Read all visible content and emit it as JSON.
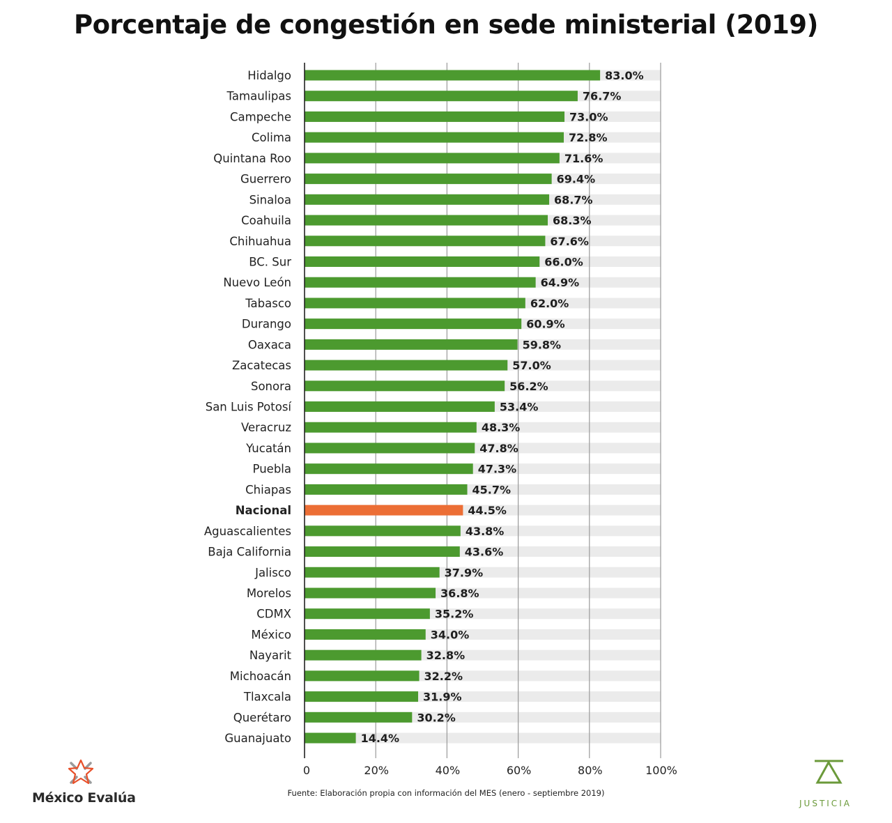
{
  "chart_data": {
    "type": "bar",
    "orientation": "horizontal",
    "title": "Porcentaje de congestión en sede ministerial (2019)",
    "xlabel": "",
    "ylabel": "",
    "xlim": [
      0,
      100
    ],
    "ticks": [
      0,
      20,
      40,
      60,
      80,
      100
    ],
    "tick_labels": [
      "0",
      "20%",
      "40%",
      "60%",
      "80%",
      "100%"
    ],
    "grid": true,
    "categories": [
      "Hidalgo",
      "Tamaulipas",
      "Campeche",
      "Colima",
      "Quintana Roo",
      "Guerrero",
      "Sinaloa",
      "Coahuila",
      "Chihuahua",
      "BC. Sur",
      "Nuevo León",
      "Tabasco",
      "Durango",
      "Oaxaca",
      "Zacatecas",
      "Sonora",
      "San Luis Potosí",
      "Veracruz",
      "Yucatán",
      "Puebla",
      "Chiapas",
      "Nacional",
      "Aguascalientes",
      "Baja California",
      "Jalisco",
      "Morelos",
      "CDMX",
      "México",
      "Nayarit",
      "Michoacán",
      "Tlaxcala",
      "Querétaro",
      "Guanajuato"
    ],
    "values": [
      83.0,
      76.7,
      73.0,
      72.8,
      71.6,
      69.4,
      68.7,
      68.3,
      67.6,
      66.0,
      64.9,
      62.0,
      60.9,
      59.8,
      57.0,
      56.2,
      53.4,
      48.3,
      47.8,
      47.3,
      45.7,
      44.5,
      43.8,
      43.6,
      37.9,
      36.8,
      35.2,
      34.0,
      32.8,
      32.2,
      31.9,
      30.2,
      14.4
    ],
    "value_labels": [
      "83.0%",
      "76.7%",
      "73.0%",
      "72.8%",
      "71.6%",
      "69.4%",
      "68.7%",
      "68.3%",
      "67.6%",
      "66.0%",
      "64.9%",
      "62.0%",
      "60.9%",
      "59.8%",
      "57.0%",
      "56.2%",
      "53.4%",
      "48.3%",
      "47.8%",
      "47.3%",
      "45.7%",
      "44.5%",
      "43.8%",
      "43.6%",
      "37.9%",
      "36.8%",
      "35.2%",
      "34.0%",
      "32.8%",
      "32.2%",
      "31.9%",
      "30.2%",
      "14.4%"
    ],
    "highlight_category": "Nacional",
    "colors": {
      "bar": "#4c9a2f",
      "highlight": "#ec6e35",
      "track": "#ebebeb",
      "grid": "#9a9a9a",
      "axis": "#222222"
    },
    "legend": "none"
  },
  "footer": {
    "source": "Fuente: Elaboración propia con información del MES (enero - septiembre 2019)",
    "logo_left": {
      "text": "México Evalúa",
      "icon": "star-burst-icon"
    },
    "logo_right": {
      "text": "JUSTICIA",
      "icon": "scale-triangle-icon"
    }
  }
}
